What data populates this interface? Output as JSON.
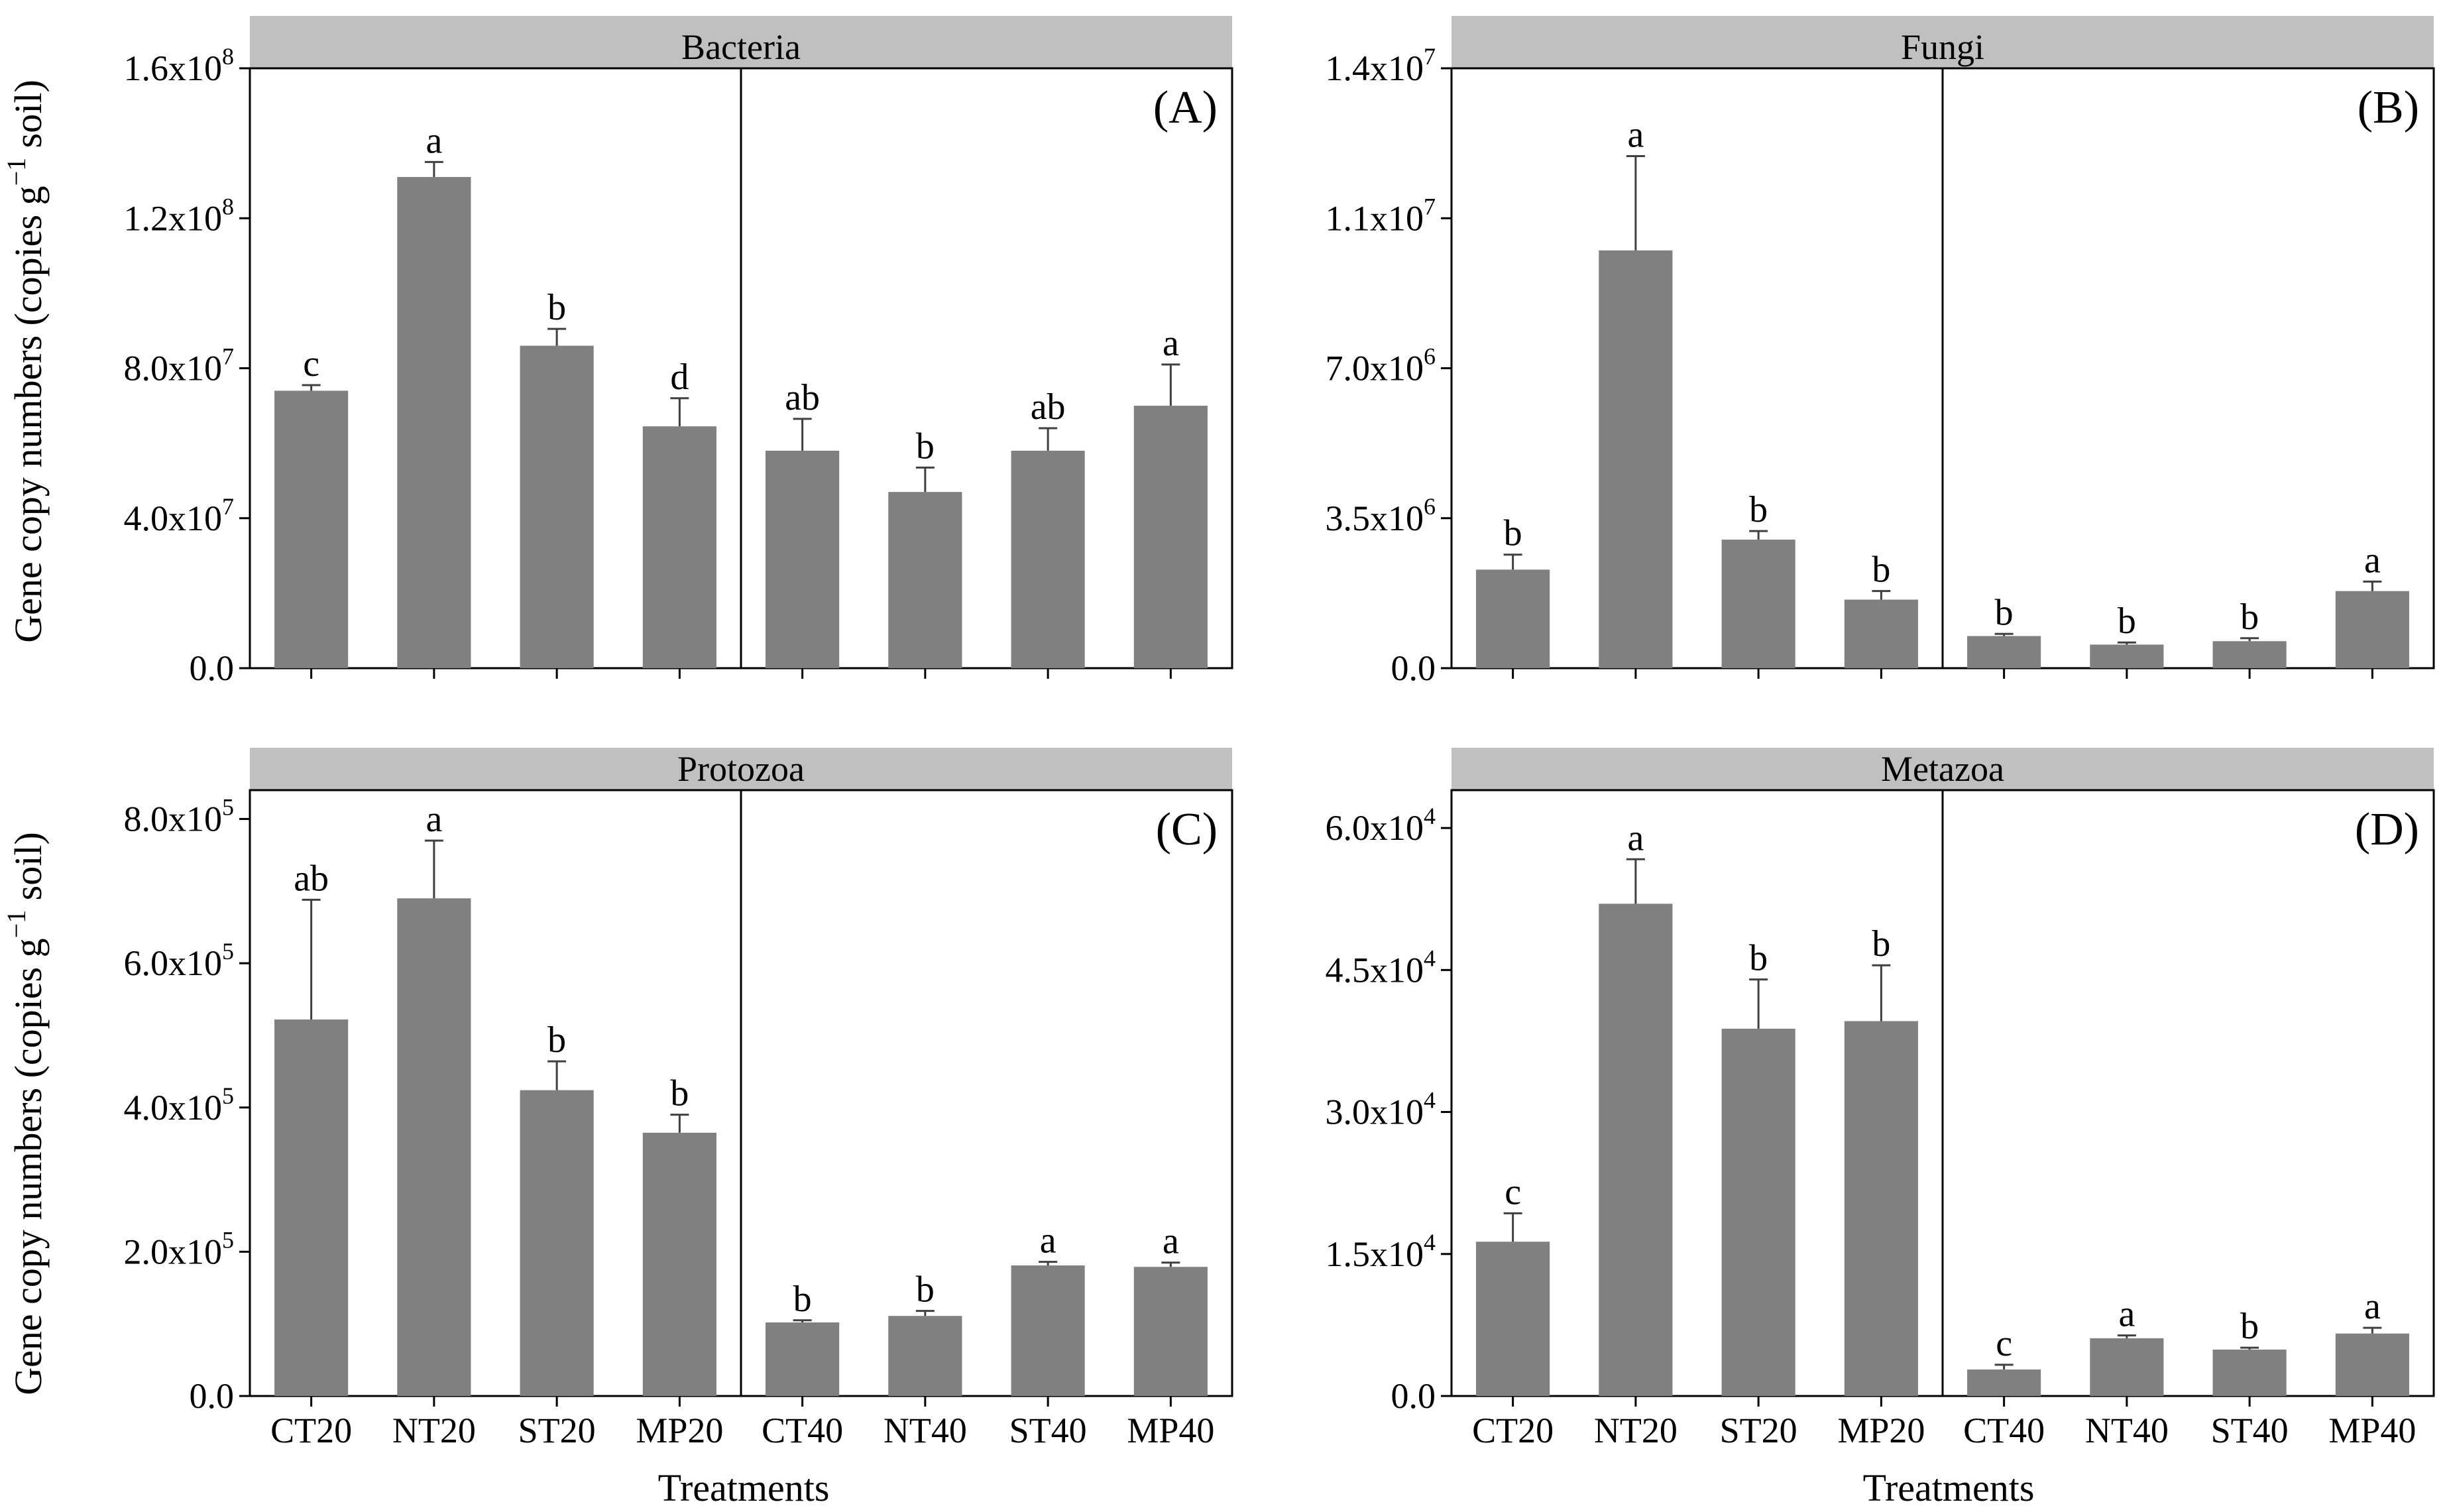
{
  "figure": {
    "y_axis_title": {
      "text": "Gene copy numbers (copies g",
      "superscript": "−1",
      "suffix": " soil)"
    },
    "x_axis_title": "Treatments",
    "colors": {
      "bar": "#808080",
      "strip": "#c0c0c0",
      "axis": "#000000",
      "error_bar": "#404040"
    }
  },
  "chart_data": [
    {
      "type": "bar",
      "panel": "(A)",
      "title": "Bacteria",
      "categories": [
        "CT20",
        "NT20",
        "ST20",
        "MP20",
        "CT40",
        "NT40",
        "ST40",
        "MP40"
      ],
      "values": [
        74000000,
        131000000,
        86000000,
        64500000,
        58000000,
        47000000,
        58000000,
        70000000
      ],
      "errors": [
        1500000,
        4000000,
        4500000,
        7500000,
        8500000,
        6500000,
        6000000,
        11000000
      ],
      "letters": [
        "c",
        "a",
        "b",
        "d",
        "ab",
        "b",
        "ab",
        "a"
      ],
      "yticks": [
        {
          "value": 0,
          "label": "0.0",
          "exp": ""
        },
        {
          "value": 40000000,
          "label": "4.0x10",
          "exp": "7"
        },
        {
          "value": 80000000,
          "label": "8.0x10",
          "exp": "7"
        },
        {
          "value": 120000000,
          "label": "1.2x10",
          "exp": "8"
        },
        {
          "value": 160000000,
          "label": "1.6x10",
          "exp": "8"
        }
      ],
      "ylim": [
        0,
        160000000
      ],
      "xlabel": "",
      "ylabel": "Gene copy numbers (copies g−1 soil)"
    },
    {
      "type": "bar",
      "panel": "(B)",
      "title": "Fungi",
      "categories": [
        "CT20",
        "NT20",
        "ST20",
        "MP20",
        "CT40",
        "NT40",
        "ST40",
        "MP40"
      ],
      "values": [
        2300000,
        9750000,
        3000000,
        1600000,
        750000,
        550000,
        630000,
        1800000
      ],
      "errors": [
        350000,
        2200000,
        200000,
        200000,
        50000,
        50000,
        70000,
        220000
      ],
      "letters": [
        "b",
        "a",
        "b",
        "b",
        "b",
        "b",
        "b",
        "a"
      ],
      "yticks": [
        {
          "value": 0,
          "label": "0.0",
          "exp": ""
        },
        {
          "value": 3500000,
          "label": "3.5x10",
          "exp": "6"
        },
        {
          "value": 7000000,
          "label": "7.0x10",
          "exp": "6"
        },
        {
          "value": 10500000,
          "label": "1.1x10",
          "exp": "7"
        },
        {
          "value": 14000000,
          "label": "1.4x10",
          "exp": "7"
        }
      ],
      "ylim": [
        0,
        14000000
      ],
      "xlabel": "",
      "ylabel": ""
    },
    {
      "type": "bar",
      "panel": "(C)",
      "title": "Protozoa",
      "categories": [
        "CT20",
        "NT20",
        "ST20",
        "MP20",
        "CT40",
        "NT40",
        "ST40",
        "MP40"
      ],
      "values": [
        522000,
        690000,
        424000,
        365000,
        102000,
        111000,
        181000,
        179000
      ],
      "errors": [
        166000,
        80000,
        40000,
        25000,
        3000,
        7000,
        5000,
        6000
      ],
      "letters": [
        "ab",
        "a",
        "b",
        "b",
        "b",
        "b",
        "a",
        "a"
      ],
      "yticks": [
        {
          "value": 0,
          "label": "0.0",
          "exp": ""
        },
        {
          "value": 200000,
          "label": "2.0x10",
          "exp": "5"
        },
        {
          "value": 400000,
          "label": "4.0x10",
          "exp": "5"
        },
        {
          "value": 600000,
          "label": "6.0x10",
          "exp": "5"
        },
        {
          "value": 800000,
          "label": "8.0x10",
          "exp": "5"
        }
      ],
      "ylim": [
        0,
        840000
      ],
      "xlabel": "Treatments",
      "ylabel": "Gene copy numbers (copies g−1 soil)"
    },
    {
      "type": "bar",
      "panel": "(D)",
      "title": "Metazoa",
      "categories": [
        "CT20",
        "NT20",
        "ST20",
        "MP20",
        "CT40",
        "NT40",
        "ST40",
        "MP40"
      ],
      "values": [
        16300,
        52000,
        38800,
        39600,
        2800,
        6100,
        4900,
        6600
      ],
      "errors": [
        3000,
        4700,
        5200,
        5900,
        500,
        300,
        200,
        600
      ],
      "letters": [
        "c",
        "a",
        "b",
        "b",
        "c",
        "a",
        "b",
        "a"
      ],
      "yticks": [
        {
          "value": 0,
          "label": "0.0",
          "exp": ""
        },
        {
          "value": 15000,
          "label": "1.5x10",
          "exp": "4"
        },
        {
          "value": 30000,
          "label": "3.0x10",
          "exp": "4"
        },
        {
          "value": 45000,
          "label": "4.5x10",
          "exp": "4"
        },
        {
          "value": 60000,
          "label": "6.0x10",
          "exp": "4"
        }
      ],
      "ylim": [
        0,
        64000
      ],
      "xlabel": "Treatments",
      "ylabel": ""
    }
  ]
}
